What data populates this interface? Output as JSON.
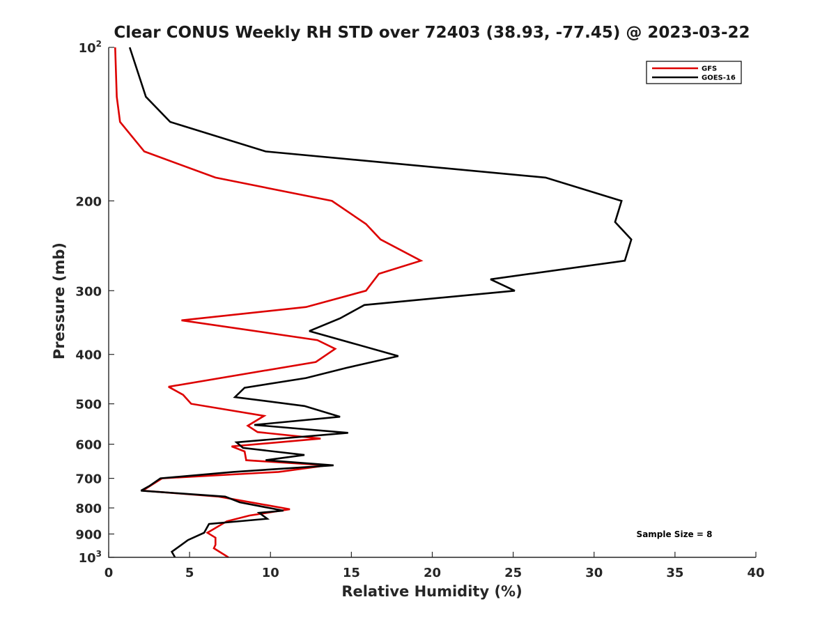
{
  "chart_data": {
    "type": "line",
    "title": "Clear CONUS Weekly RH STD over 72403 (38.93, -77.45) @ 2023-03-22",
    "xlabel": "Relative Humidity (%)",
    "ylabel": "Pressure (mb)",
    "xlim": [
      0,
      40
    ],
    "ylim": [
      100,
      1000
    ],
    "yscale": "log",
    "y_reversed": true,
    "xticks": [
      0,
      5,
      10,
      15,
      20,
      25,
      30,
      35,
      40
    ],
    "xtick_labels": [
      "0",
      "5",
      "10",
      "15",
      "20",
      "25",
      "30",
      "35",
      "40"
    ],
    "yticks": [
      100,
      200,
      300,
      400,
      500,
      600,
      700,
      800,
      900,
      1000
    ],
    "ytick_labels": [
      {
        "base": "10",
        "sup": "2"
      },
      {
        "base": "200",
        "sup": ""
      },
      {
        "base": "300",
        "sup": ""
      },
      {
        "base": "400",
        "sup": ""
      },
      {
        "base": "500",
        "sup": ""
      },
      {
        "base": "600",
        "sup": ""
      },
      {
        "base": "700",
        "sup": ""
      },
      {
        "base": "800",
        "sup": ""
      },
      {
        "base": "900",
        "sup": ""
      },
      {
        "base": "10",
        "sup": "3"
      }
    ],
    "grid": false,
    "legend_position": "top-right",
    "annotation": "Sample Size = 8",
    "series": [
      {
        "name": "GFS",
        "color": "#dd0000",
        "points": [
          [
            0.4,
            100
          ],
          [
            0.5,
            125
          ],
          [
            0.7,
            140
          ],
          [
            2.2,
            160
          ],
          [
            6.6,
            180
          ],
          [
            13.8,
            200
          ],
          [
            15.9,
            222
          ],
          [
            16.8,
            238
          ],
          [
            19.3,
            262
          ],
          [
            16.7,
            278
          ],
          [
            15.9,
            300
          ],
          [
            12.2,
            323
          ],
          [
            4.5,
            343
          ],
          [
            12.9,
            375
          ],
          [
            14.0,
            390
          ],
          [
            12.8,
            414
          ],
          [
            3.7,
            463
          ],
          [
            4.6,
            480
          ],
          [
            5.1,
            500
          ],
          [
            9.6,
            528
          ],
          [
            8.6,
            552
          ],
          [
            9.2,
            568
          ],
          [
            13.1,
            585
          ],
          [
            7.6,
            606
          ],
          [
            8.4,
            620
          ],
          [
            8.5,
            645
          ],
          [
            13.5,
            660
          ],
          [
            10.5,
            680
          ],
          [
            3.3,
            700
          ],
          [
            2.1,
            740
          ],
          [
            6.8,
            760
          ],
          [
            11.2,
            805
          ],
          [
            8.7,
            828
          ],
          [
            7.3,
            850
          ],
          [
            6.1,
            895
          ],
          [
            6.6,
            915
          ],
          [
            6.6,
            945
          ],
          [
            6.5,
            960
          ],
          [
            7.4,
            1000
          ]
        ]
      },
      {
        "name": "GOES-16",
        "color": "#000000",
        "points": [
          [
            1.3,
            100
          ],
          [
            2.3,
            125
          ],
          [
            3.8,
            140
          ],
          [
            9.7,
            160
          ],
          [
            27.0,
            180
          ],
          [
            31.7,
            200
          ],
          [
            31.3,
            220
          ],
          [
            32.3,
            238
          ],
          [
            31.9,
            262
          ],
          [
            23.6,
            285
          ],
          [
            25.1,
            300
          ],
          [
            15.8,
            320
          ],
          [
            14.3,
            340
          ],
          [
            12.4,
            360
          ],
          [
            17.9,
            403
          ],
          [
            14.7,
            425
          ],
          [
            12.2,
            445
          ],
          [
            8.4,
            465
          ],
          [
            7.8,
            485
          ],
          [
            12.1,
            505
          ],
          [
            14.3,
            530
          ],
          [
            9.0,
            550
          ],
          [
            14.8,
            570
          ],
          [
            7.9,
            595
          ],
          [
            8.3,
            610
          ],
          [
            12.1,
            630
          ],
          [
            9.7,
            645
          ],
          [
            13.9,
            660
          ],
          [
            7.7,
            680
          ],
          [
            3.2,
            700
          ],
          [
            2.5,
            725
          ],
          [
            2.0,
            740
          ],
          [
            7.2,
            760
          ],
          [
            8.1,
            780
          ],
          [
            10.8,
            810
          ],
          [
            9.3,
            818
          ],
          [
            9.8,
            840
          ],
          [
            6.2,
            860
          ],
          [
            5.9,
            895
          ],
          [
            4.9,
            925
          ],
          [
            4.4,
            950
          ],
          [
            3.9,
            975
          ],
          [
            4.1,
            1000
          ]
        ]
      }
    ]
  }
}
